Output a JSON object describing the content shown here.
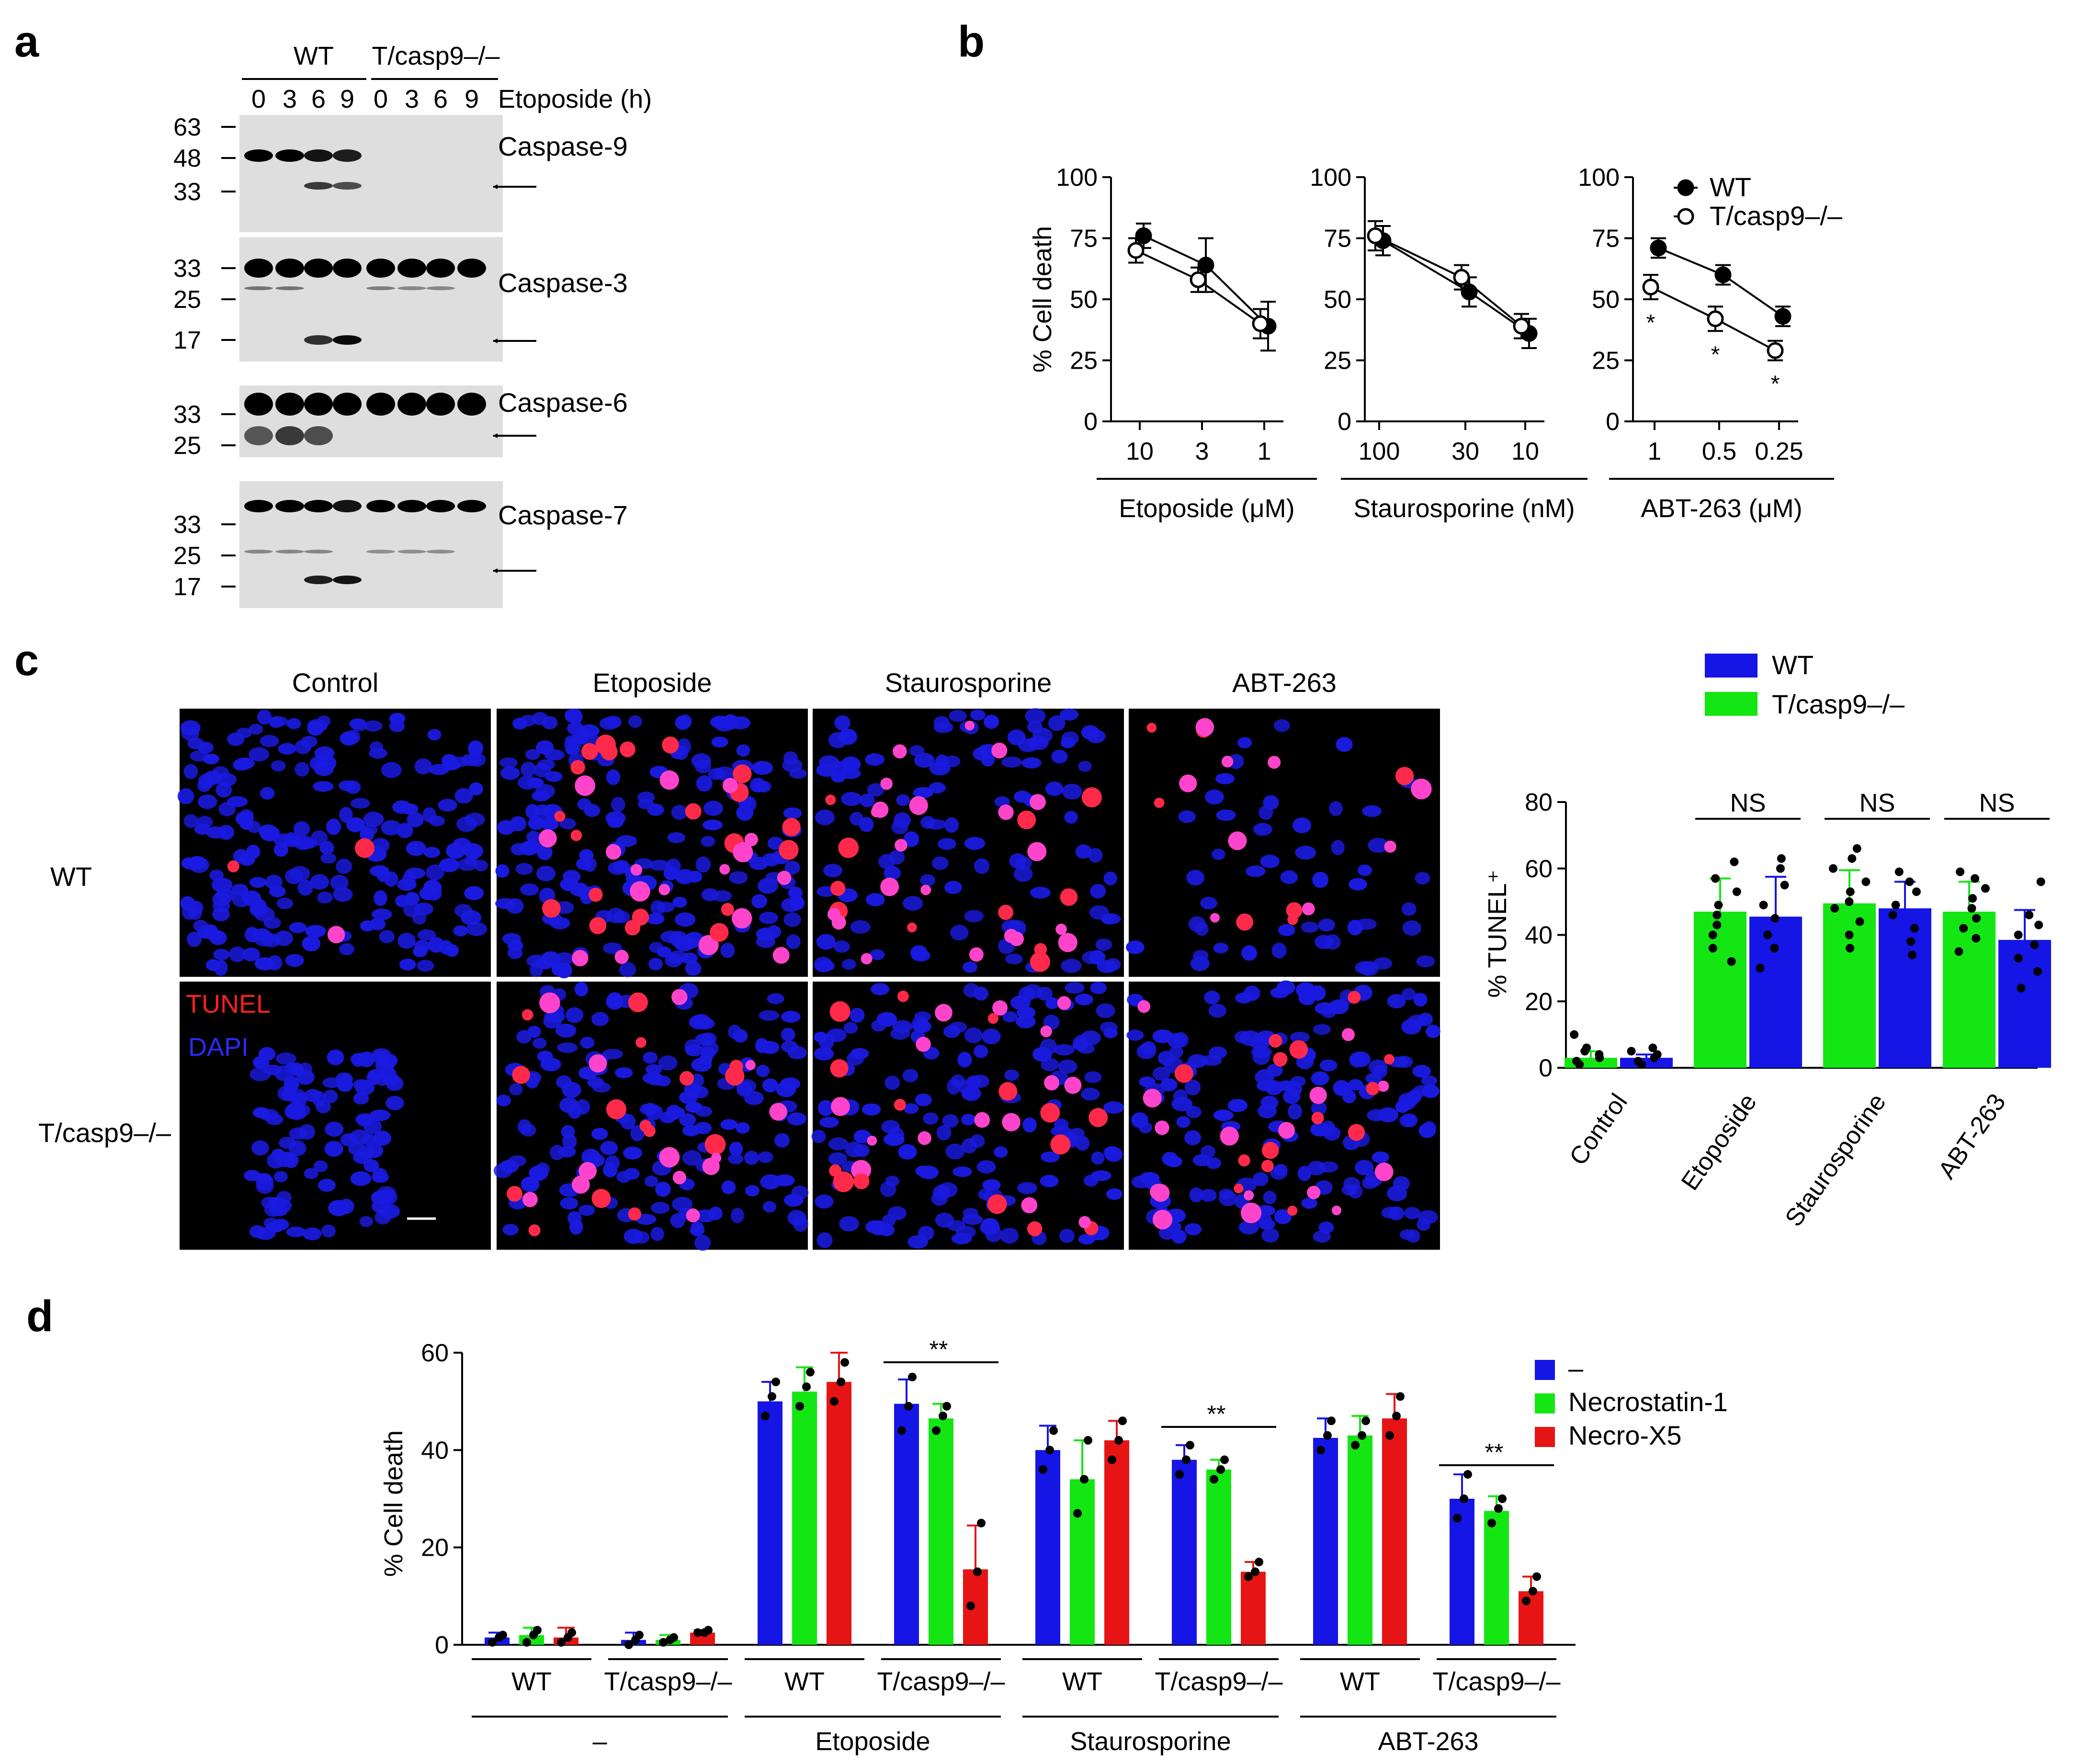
{
  "panel_letters": {
    "a": "a",
    "b": "b",
    "c": "c",
    "d": "d"
  },
  "genotypes": {
    "wt": "WT",
    "ko": "T/casp9–/–"
  },
  "panel_a": {
    "timepoints": [
      "0",
      "3",
      "6",
      "9"
    ],
    "treatment_label": "Etoposide (h)",
    "blots": [
      {
        "name": "Caspase-9",
        "markers": [
          "63",
          "48",
          "33"
        ]
      },
      {
        "name": "Caspase-3",
        "markers": [
          "33",
          "25",
          "17"
        ]
      },
      {
        "name": "Caspase-6",
        "markers": [
          "33",
          "25"
        ]
      },
      {
        "name": "Caspase-7",
        "markers": [
          "33",
          "25",
          "17"
        ]
      }
    ]
  },
  "panel_c_images": {
    "columns": [
      "Control",
      "Etoposide",
      "Staurosporine",
      "ABT-263"
    ],
    "rows": [
      "WT",
      "T/casp9–/–"
    ],
    "stain_tunel": "TUNEL",
    "stain_dapi": "DAPI",
    "colors": {
      "dapi": "#1a1ae0",
      "tunel": "#ff2a4a"
    }
  },
  "chart_data": [
    {
      "id": "b-etoposide",
      "type": "line",
      "ylabel": "% Cell death",
      "xlabel": "Etoposide (μM)",
      "categories": [
        "10",
        "3",
        "1"
      ],
      "ylim": [
        0,
        100
      ],
      "yticks": [
        "0",
        "25",
        "50",
        "75",
        "100"
      ],
      "series": [
        {
          "name": "WT",
          "values": [
            76,
            64,
            39
          ],
          "errors": [
            5,
            11,
            10
          ]
        },
        {
          "name": "T/casp9–/–",
          "values": [
            70,
            58,
            40
          ],
          "errors": [
            5,
            5,
            6
          ]
        }
      ]
    },
    {
      "id": "b-staurosporine",
      "type": "line",
      "xlabel": "Staurosporine (nM)",
      "categories": [
        "100",
        "30",
        "10"
      ],
      "ylim": [
        0,
        100
      ],
      "yticks": [
        "0",
        "25",
        "50",
        "75",
        "100"
      ],
      "series": [
        {
          "name": "WT",
          "values": [
            74,
            53,
            36
          ],
          "errors": [
            6,
            6,
            6
          ]
        },
        {
          "name": "T/casp9–/–",
          "values": [
            76,
            59,
            39
          ],
          "errors": [
            6,
            5,
            5
          ]
        }
      ]
    },
    {
      "id": "b-abt263",
      "type": "line",
      "xlabel": "ABT-263 (μM)",
      "categories": [
        "1",
        "0.5",
        "0.25"
      ],
      "ylim": [
        0,
        100
      ],
      "yticks": [
        "0",
        "25",
        "50",
        "75",
        "100"
      ],
      "series": [
        {
          "name": "WT",
          "values": [
            71,
            60,
            43
          ],
          "errors": [
            4,
            4,
            4
          ]
        },
        {
          "name": "T/casp9–/–",
          "values": [
            55,
            42,
            29
          ],
          "errors": [
            5,
            5,
            4
          ]
        }
      ],
      "significance": [
        "*",
        "*",
        "*"
      ],
      "legend": "top-right"
    },
    {
      "id": "c-tunel",
      "type": "bar",
      "ylabel": "% TUNEL⁺",
      "categories": [
        "Control",
        "Etoposide",
        "Staurosporine",
        "ABT-263"
      ],
      "ylim": [
        0,
        80
      ],
      "yticks": [
        "0",
        "20",
        "40",
        "60",
        "80"
      ],
      "significance": [
        "",
        "NS",
        "NS",
        "NS"
      ],
      "legend": "top-right",
      "series": [
        {
          "name": "T/casp9–/–",
          "color": "#14e614",
          "values": [
            3,
            47,
            49.5,
            47
          ],
          "errors": [
            2,
            10,
            10,
            9
          ],
          "points": [
            [
              1,
              2,
              3,
              4,
              5,
              6,
              10
            ],
            [
              32,
              36,
              40,
              43,
              46,
              49,
              53,
              57,
              62
            ],
            [
              36,
              40,
              44,
              48,
              50,
              53,
              56,
              60,
              63,
              66
            ],
            [
              35,
              39,
              42,
              45,
              48,
              51,
              54,
              57,
              59
            ]
          ]
        },
        {
          "name": "WT",
          "color": "#1515e6",
          "values": [
            3,
            45.5,
            48,
            38.5
          ],
          "errors": [
            1,
            12,
            8,
            9
          ],
          "points": [
            [
              1,
              2,
              3,
              4,
              5,
              6
            ],
            [
              30,
              36,
              40,
              45,
              49,
              55,
              60,
              63
            ],
            [
              34,
              38,
              42,
              46,
              49,
              53,
              56,
              59
            ],
            [
              24,
              29,
              33,
              37,
              40,
              43,
              46,
              56
            ]
          ]
        }
      ]
    },
    {
      "id": "d-cell-death",
      "type": "bar",
      "ylabel": "% Cell death",
      "ylim": [
        0,
        60
      ],
      "yticks": [
        "0",
        "20",
        "40",
        "60"
      ],
      "groups": [
        {
          "treatment": "–",
          "genotypes": [
            {
              "label": "WT",
              "values": [
                1.5,
                2,
                1.5
              ],
              "errors": [
                1,
                1.5,
                2
              ],
              "points": [
                [
                  0.5,
                  1.5,
                  2
                ],
                [
                  0.5,
                  2,
                  3
                ],
                [
                  0.5,
                  1.5,
                  2.5
                ]
              ]
            },
            {
              "label": "T/casp9–/–",
              "values": [
                1,
                1,
                2.5
              ],
              "errors": [
                1.5,
                1,
                0.5
              ],
              "points": [
                [
                  0,
                  1,
                  2
                ],
                [
                  0.5,
                  1,
                  1.5
                ],
                [
                  2.5,
                  2.5,
                  3
                ]
              ]
            }
          ]
        },
        {
          "treatment": "Etoposide",
          "genotypes": [
            {
              "label": "WT",
              "values": [
                50,
                52,
                54
              ],
              "errors": [
                4,
                5,
                6
              ],
              "points": [
                [
                  47,
                  51,
                  54
                ],
                [
                  49,
                  53,
                  56
                ],
                [
                  50,
                  54,
                  58
                ]
              ]
            },
            {
              "label": "T/casp9–/–",
              "values": [
                49.5,
                46.5,
                15.5
              ],
              "errors": [
                5,
                3,
                9
              ],
              "points": [
                [
                  44,
                  49,
                  55
                ],
                [
                  44,
                  47,
                  49
                ],
                [
                  8,
                  15,
                  25
                ]
              ],
              "significance": "**"
            }
          ]
        },
        {
          "treatment": "Staurosporine",
          "genotypes": [
            {
              "label": "WT",
              "values": [
                40,
                34,
                42
              ],
              "errors": [
                5,
                8,
                4
              ],
              "points": [
                [
                  36,
                  40,
                  44
                ],
                [
                  27,
                  34,
                  42
                ],
                [
                  38,
                  42,
                  46
                ]
              ]
            },
            {
              "label": "T/casp9–/–",
              "values": [
                38,
                36,
                15
              ],
              "errors": [
                3,
                2,
                2
              ],
              "points": [
                [
                  35,
                  38,
                  41
                ],
                [
                  34,
                  36,
                  38
                ],
                [
                  14,
                  15,
                  17
                ]
              ],
              "significance": "**"
            }
          ]
        },
        {
          "treatment": "ABT-263",
          "genotypes": [
            {
              "label": "WT",
              "values": [
                42.5,
                43,
                46.5
              ],
              "errors": [
                4,
                4,
                5
              ],
              "points": [
                [
                  40,
                  43,
                  46
                ],
                [
                  41,
                  43,
                  46
                ],
                [
                  43,
                  47,
                  51
                ]
              ]
            },
            {
              "label": "T/casp9–/–",
              "values": [
                30,
                27.5,
                11
              ],
              "errors": [
                5,
                3,
                3
              ],
              "points": [
                [
                  26,
                  30,
                  35
                ],
                [
                  25,
                  28,
                  30
                ],
                [
                  9,
                  11,
                  14
                ]
              ],
              "significance": "**"
            }
          ]
        }
      ],
      "series": [
        {
          "name": "–",
          "color": "#1515e6"
        },
        {
          "name": "Necrostatin-1",
          "color": "#14e614"
        },
        {
          "name": "Necro-X5",
          "color": "#e61414"
        }
      ],
      "legend": "top-right"
    }
  ]
}
